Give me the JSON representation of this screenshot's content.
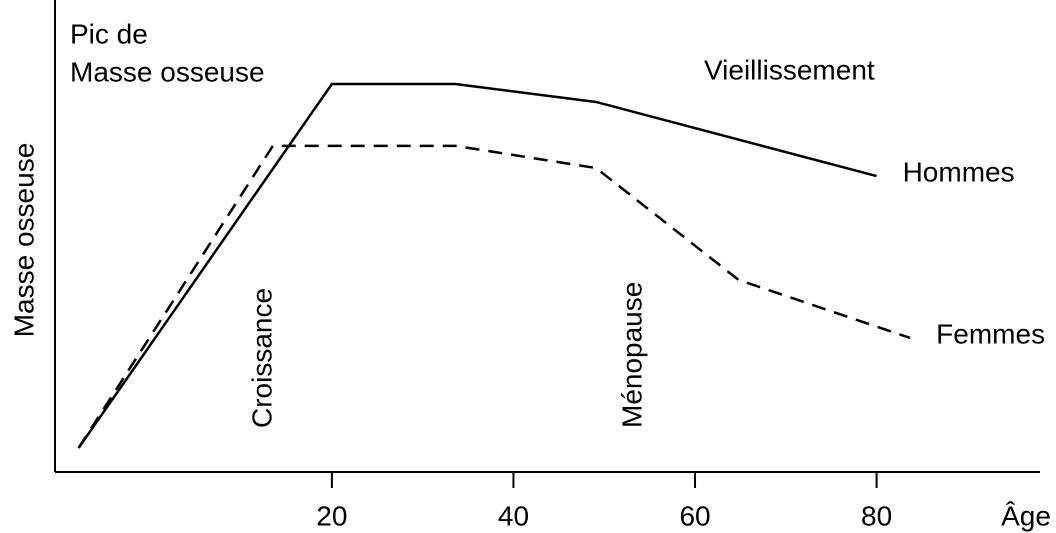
{
  "chart_data": {
    "type": "line",
    "x_label": "Âge",
    "y_label": "Masse osseuse",
    "annotations": [
      "Pic de",
      "Masse osseuse",
      "Vieillissement",
      "Croissance",
      "Ménopause"
    ],
    "xlim": [
      -10.5,
      98
    ],
    "ylim": [
      0,
      100
    ],
    "xticks": [
      20,
      40,
      60,
      80
    ],
    "series": [
      {
        "name": "Hommes",
        "color": "#000000",
        "line_style": "solid",
        "x": [
          -7.9,
          20,
          33.6,
          49.1,
          80
        ],
        "values": [
          5.1,
          82.2,
          82.2,
          78.4,
          62.7
        ]
      },
      {
        "name": "Femmes",
        "color": "#000000",
        "line_style": "dashed",
        "x": [
          -7.9,
          13.5,
          33.6,
          49.1,
          64.8,
          83.7
        ],
        "values": [
          5.1,
          69.1,
          69.1,
          64.4,
          40.7,
          28.4
        ]
      }
    ]
  }
}
